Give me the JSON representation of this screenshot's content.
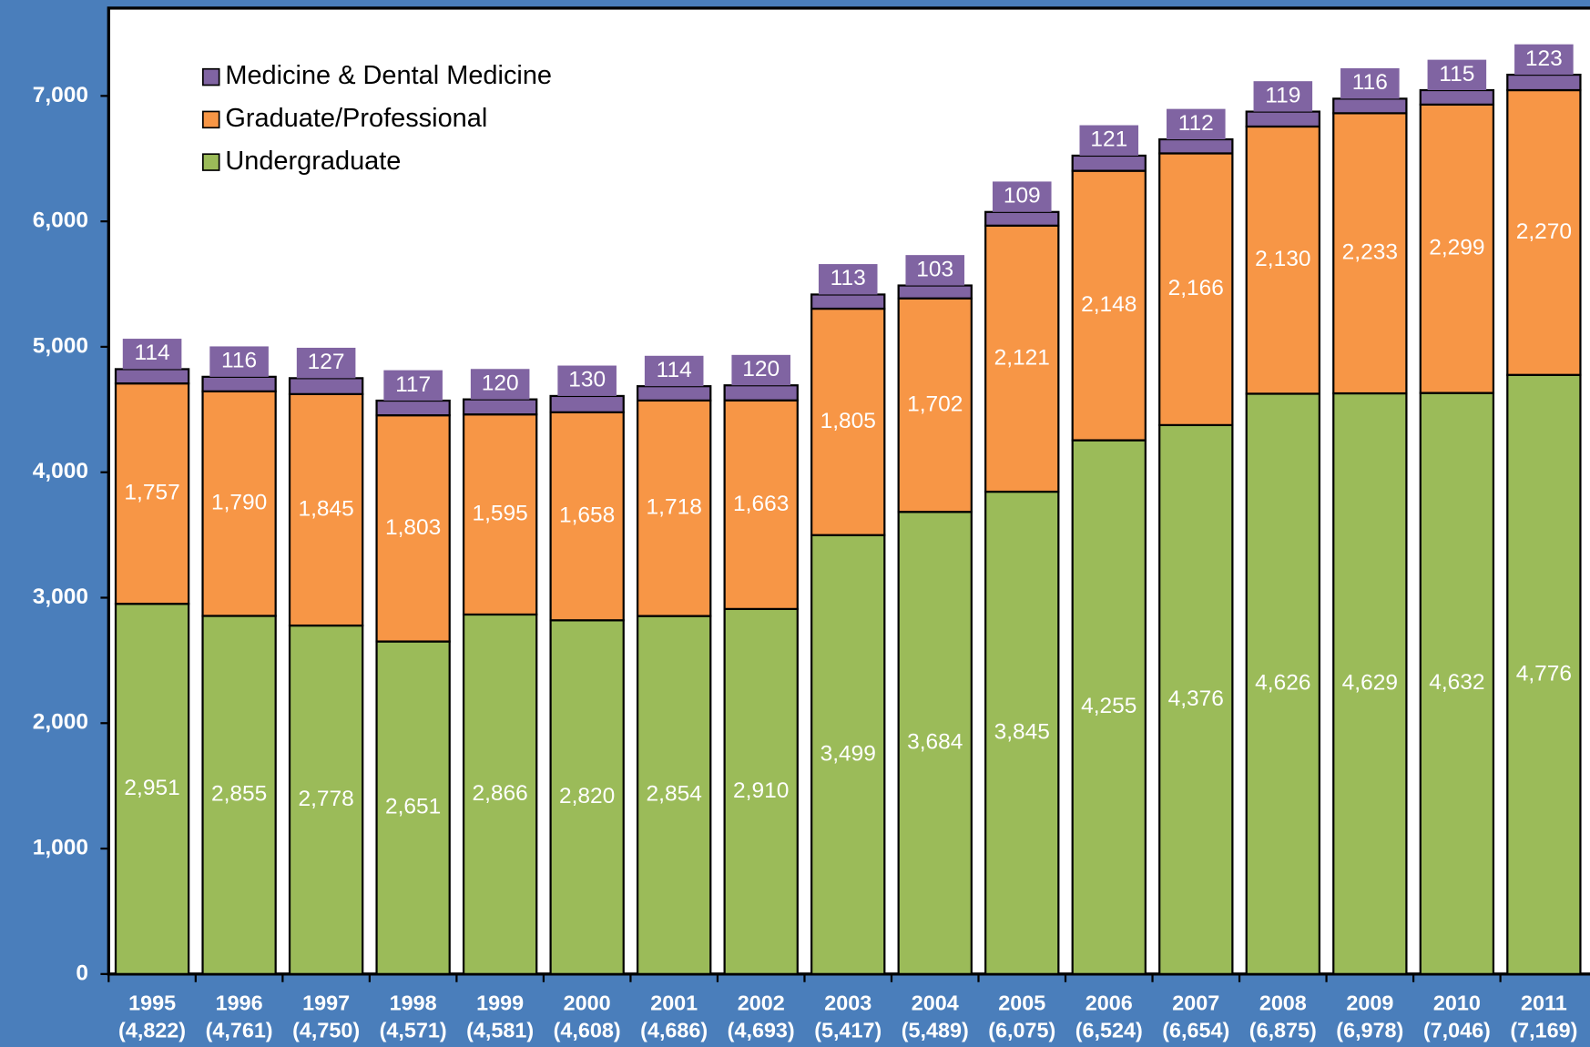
{
  "chart_data": {
    "type": "stacked_bar",
    "categories": [
      "1995",
      "1996",
      "1997",
      "1998",
      "1999",
      "2000",
      "2001",
      "2002",
      "2003",
      "2004",
      "2005",
      "2006",
      "2007",
      "2008",
      "2009",
      "2010",
      "2011"
    ],
    "category_totals": [
      4822,
      4761,
      4750,
      4571,
      4581,
      4608,
      4686,
      4693,
      5417,
      5489,
      6075,
      6524,
      6654,
      6875,
      6978,
      7046,
      7169
    ],
    "category_total_labels": [
      "(4,822)",
      "(4,761)",
      "(4,750)",
      "(4,571)",
      "(4,581)",
      "(4,608)",
      "(4,686)",
      "(4,693)",
      "(5,417)",
      "(5,489)",
      "(6,075)",
      "(6,524)",
      "(6,654)",
      "(6,875)",
      "(6,978)",
      "(7,046)",
      "(7,169)"
    ],
    "series": [
      {
        "name": "Undergraduate",
        "color": "#9bbb59",
        "values": [
          2951,
          2855,
          2778,
          2651,
          2866,
          2820,
          2854,
          2910,
          3499,
          3684,
          3845,
          4255,
          4376,
          4626,
          4629,
          4632,
          4776
        ],
        "value_labels": [
          "2,951",
          "2,855",
          "2,778",
          "2,651",
          "2,866",
          "2,820",
          "2,854",
          "2,910",
          "3,499",
          "3,684",
          "3,845",
          "4,255",
          "4,376",
          "4,626",
          "4,629",
          "4,632",
          "4,776"
        ]
      },
      {
        "name": "Graduate/Professional",
        "color": "#f79646",
        "values": [
          1757,
          1790,
          1845,
          1803,
          1595,
          1658,
          1718,
          1663,
          1805,
          1702,
          2121,
          2148,
          2166,
          2130,
          2233,
          2299,
          2270
        ],
        "value_labels": [
          "1,757",
          "1,790",
          "1,845",
          "1,803",
          "1,595",
          "1,658",
          "1,718",
          "1,663",
          "1,805",
          "1,702",
          "2,121",
          "2,148",
          "2,166",
          "2,130",
          "2,233",
          "2,299",
          "2,270"
        ]
      },
      {
        "name": "Medicine & Dental Medicine",
        "color": "#8064a2",
        "values": [
          114,
          116,
          127,
          117,
          120,
          130,
          114,
          120,
          113,
          103,
          109,
          121,
          112,
          119,
          116,
          115,
          123
        ]
      }
    ],
    "ylim": [
      0,
      7700
    ],
    "yticks": [
      0,
      {
        "value": 1000,
        "label": "1,000"
      },
      {
        "value": 2000,
        "label": "2,000"
      },
      {
        "value": 3000,
        "label": "3,000"
      },
      {
        "value": 4000,
        "label": "4,000"
      },
      {
        "value": 5000,
        "label": "5,000"
      },
      {
        "value": 6000,
        "label": "6,000"
      },
      {
        "value": 7000,
        "label": "7,000"
      }
    ],
    "legend": "top-left"
  }
}
